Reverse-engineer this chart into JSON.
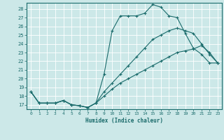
{
  "xlabel": "Humidex (Indice chaleur)",
  "bg_color": "#cce8e8",
  "grid_color": "#ffffff",
  "line_color": "#1a6b6b",
  "xlim": [
    -0.5,
    23.5
  ],
  "ylim": [
    16.5,
    28.7
  ],
  "xticks": [
    0,
    1,
    2,
    3,
    4,
    5,
    6,
    7,
    8,
    9,
    10,
    11,
    12,
    13,
    14,
    15,
    16,
    17,
    18,
    19,
    20,
    21,
    22,
    23
  ],
  "yticks": [
    17,
    18,
    19,
    20,
    21,
    22,
    23,
    24,
    25,
    26,
    27,
    28
  ],
  "line1_x": [
    0,
    1,
    2,
    3,
    4,
    5,
    6,
    7,
    8,
    9,
    10,
    11,
    12,
    13,
    14,
    15,
    16,
    17,
    18,
    19,
    20,
    21,
    22,
    23
  ],
  "line1_y": [
    18.5,
    17.2,
    17.2,
    17.2,
    17.5,
    17.0,
    16.9,
    16.7,
    17.2,
    20.5,
    25.5,
    27.2,
    27.2,
    27.2,
    27.5,
    28.5,
    28.2,
    27.2,
    27.0,
    25.2,
    23.5,
    22.8,
    21.8,
    21.8
  ],
  "line2_x": [
    0,
    1,
    2,
    3,
    4,
    5,
    6,
    7,
    8,
    9,
    10,
    11,
    12,
    13,
    14,
    15,
    16,
    17,
    18,
    19,
    20,
    21,
    22,
    23
  ],
  "line2_y": [
    18.5,
    17.2,
    17.2,
    17.2,
    17.5,
    17.0,
    16.9,
    16.7,
    17.2,
    18.5,
    19.5,
    20.5,
    21.5,
    22.5,
    23.5,
    24.5,
    25.0,
    25.5,
    25.8,
    25.5,
    25.2,
    24.0,
    22.8,
    21.8
  ],
  "line3_x": [
    0,
    1,
    2,
    3,
    4,
    5,
    6,
    7,
    8,
    9,
    10,
    11,
    12,
    13,
    14,
    15,
    16,
    17,
    18,
    19,
    20,
    21,
    22,
    23
  ],
  "line3_y": [
    18.5,
    17.2,
    17.2,
    17.2,
    17.5,
    17.0,
    16.9,
    16.7,
    17.2,
    18.0,
    18.8,
    19.5,
    20.0,
    20.5,
    21.0,
    21.5,
    22.0,
    22.5,
    23.0,
    23.2,
    23.4,
    23.8,
    23.0,
    21.8
  ]
}
